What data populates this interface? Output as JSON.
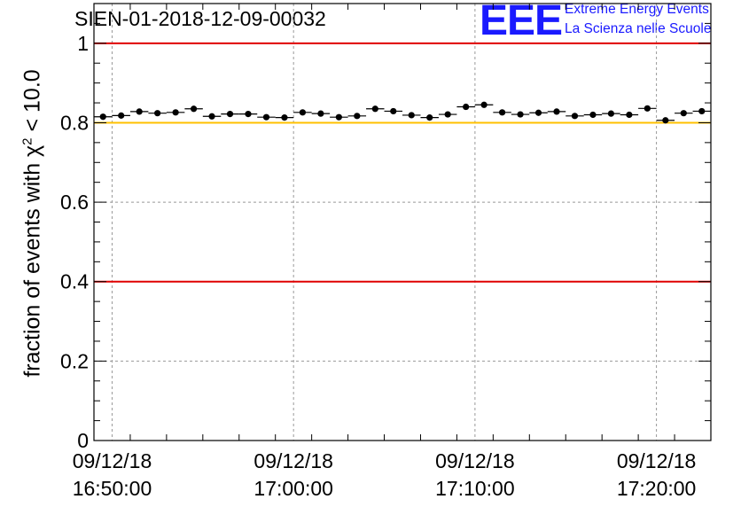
{
  "title": "SIEN-01-2018-12-09-00032",
  "logo": {
    "mark": "EEE",
    "line1": "Extreme Energy Events",
    "line2": "La Scienza nelle Scuole"
  },
  "ylabel": {
    "pre": "fraction of events with ",
    "chi": "χ",
    "sup": "2",
    "post": " < 10.0"
  },
  "colors": {
    "red_line": "#e00000",
    "yellow_line": "#ffc000",
    "markers": "#000000",
    "grid": "#999999"
  },
  "chart_data": {
    "type": "scatter",
    "title": "SIEN-01-2018-12-09-00032",
    "ylabel": "fraction of events with χ² < 10.0",
    "xlabel": "",
    "ylim": [
      0,
      1.1
    ],
    "xlim": [
      "09/12/18 16:49:00",
      "09/12/18 17:23:00"
    ],
    "grid": true,
    "yticks": [
      {
        "value": 0,
        "label": "0"
      },
      {
        "value": 0.2,
        "label": "0.2"
      },
      {
        "value": 0.4,
        "label": "0.4"
      },
      {
        "value": 0.6,
        "label": "0.6"
      },
      {
        "value": 0.8,
        "label": "0.8"
      },
      {
        "value": 1,
        "label": "1"
      }
    ],
    "xticks": [
      {
        "value": "09/12/18 16:50:00",
        "line1": "09/12/18",
        "line2": "16:50:00"
      },
      {
        "value": "09/12/18 17:00:00",
        "line1": "09/12/18",
        "line2": "17:00:00"
      },
      {
        "value": "09/12/18 17:10:00",
        "line1": "09/12/18",
        "line2": "17:10:00"
      },
      {
        "value": "09/12/18 17:20:00",
        "line1": "09/12/18",
        "line2": "17:20:00"
      }
    ],
    "reference_lines": [
      {
        "y": 1.0,
        "color": "#e00000"
      },
      {
        "y": 0.8,
        "color": "#ffc000"
      },
      {
        "y": 0.4,
        "color": "#e00000"
      }
    ],
    "points": [
      {
        "x": "16:49:30",
        "y": 0.815
      },
      {
        "x": "16:50:30",
        "y": 0.818
      },
      {
        "x": "16:51:30",
        "y": 0.828
      },
      {
        "x": "16:52:30",
        "y": 0.824
      },
      {
        "x": "16:53:30",
        "y": 0.826
      },
      {
        "x": "16:54:30",
        "y": 0.835
      },
      {
        "x": "16:55:30",
        "y": 0.816
      },
      {
        "x": "16:56:30",
        "y": 0.822
      },
      {
        "x": "16:57:30",
        "y": 0.822
      },
      {
        "x": "16:58:30",
        "y": 0.814
      },
      {
        "x": "16:59:30",
        "y": 0.813
      },
      {
        "x": "17:00:30",
        "y": 0.826
      },
      {
        "x": "17:01:30",
        "y": 0.823
      },
      {
        "x": "17:02:30",
        "y": 0.814
      },
      {
        "x": "17:03:30",
        "y": 0.817
      },
      {
        "x": "17:04:30",
        "y": 0.835
      },
      {
        "x": "17:05:30",
        "y": 0.829
      },
      {
        "x": "17:06:30",
        "y": 0.819
      },
      {
        "x": "17:07:30",
        "y": 0.813
      },
      {
        "x": "17:08:30",
        "y": 0.821
      },
      {
        "x": "17:09:30",
        "y": 0.84
      },
      {
        "x": "17:10:30",
        "y": 0.845
      },
      {
        "x": "17:11:30",
        "y": 0.826
      },
      {
        "x": "17:12:30",
        "y": 0.821
      },
      {
        "x": "17:13:30",
        "y": 0.825
      },
      {
        "x": "17:14:30",
        "y": 0.828
      },
      {
        "x": "17:15:30",
        "y": 0.817
      },
      {
        "x": "17:16:30",
        "y": 0.82
      },
      {
        "x": "17:17:30",
        "y": 0.823
      },
      {
        "x": "17:18:30",
        "y": 0.82
      },
      {
        "x": "17:19:30",
        "y": 0.836
      },
      {
        "x": "17:20:30",
        "y": 0.806
      },
      {
        "x": "17:21:30",
        "y": 0.824
      },
      {
        "x": "17:22:30",
        "y": 0.829
      }
    ]
  }
}
